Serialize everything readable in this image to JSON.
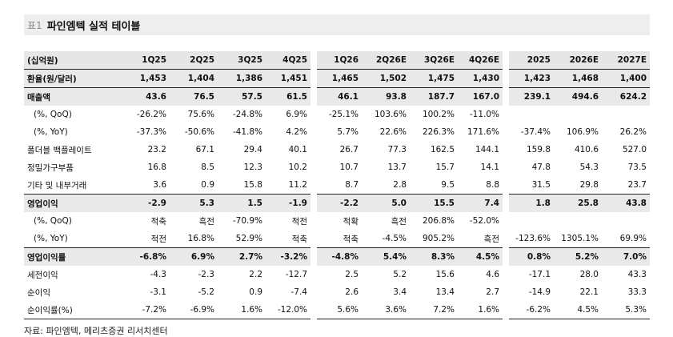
{
  "title": {
    "tag": "표1",
    "text": "파인엠텍 실적 테이블"
  },
  "columns": [
    "(십억원)",
    "1Q25",
    "2Q25",
    "3Q25",
    "4Q25",
    "1Q26",
    "2Q26E",
    "3Q26E",
    "4Q26E",
    "2025",
    "2026E",
    "2027E"
  ],
  "rows": [
    {
      "label": "환율(원/달러)",
      "style": "bold",
      "values": [
        "1,453",
        "1,404",
        "1,386",
        "1,451",
        "1,465",
        "1,502",
        "1,475",
        "1,430",
        "1,423",
        "1,468",
        "1,400"
      ]
    },
    {
      "label": "매출액",
      "style": "bold",
      "values": [
        "43.6",
        "76.5",
        "57.5",
        "61.5",
        "46.1",
        "93.8",
        "187.7",
        "167.0",
        "239.1",
        "494.6",
        "624.2"
      ]
    },
    {
      "label": "(%, QoQ)",
      "style": "indent",
      "values": [
        "-26.2%",
        "75.6%",
        "-24.8%",
        "6.9%",
        "-25.1%",
        "103.6%",
        "100.2%",
        "-11.0%",
        "",
        "",
        ""
      ]
    },
    {
      "label": "(%, YoY)",
      "style": "indent",
      "values": [
        "-37.3%",
        "-50.6%",
        "-41.8%",
        "4.2%",
        "5.7%",
        "22.6%",
        "226.3%",
        "171.6%",
        "-37.4%",
        "106.9%",
        "26.2%"
      ]
    },
    {
      "label": "폴더블 백플레이트",
      "style": "normal",
      "values": [
        "23.2",
        "67.1",
        "29.4",
        "40.1",
        "26.7",
        "77.3",
        "162.5",
        "144.1",
        "159.8",
        "410.6",
        "527.0"
      ]
    },
    {
      "label": "정밀가구부품",
      "style": "normal",
      "values": [
        "16.8",
        "8.5",
        "12.3",
        "10.2",
        "10.7",
        "13.7",
        "15.7",
        "14.1",
        "47.8",
        "54.3",
        "73.5"
      ]
    },
    {
      "label": "기타 및 내부거래",
      "style": "normal",
      "values": [
        "3.6",
        "0.9",
        "15.8",
        "11.2",
        "8.7",
        "2.8",
        "9.5",
        "8.8",
        "31.5",
        "29.8",
        "23.7"
      ]
    },
    {
      "label": "영업이익",
      "style": "bold",
      "values": [
        "-2.9",
        "5.3",
        "1.5",
        "-1.9",
        "-2.2",
        "5.0",
        "15.5",
        "7.4",
        "1.8",
        "25.8",
        "43.8"
      ]
    },
    {
      "label": "(%, QoQ)",
      "style": "indent",
      "values": [
        "적축",
        "흑전",
        "-70.9%",
        "적전",
        "적확",
        "흑전",
        "206.8%",
        "-52.0%",
        "",
        "",
        ""
      ]
    },
    {
      "label": "(%, YoY)",
      "style": "indent",
      "values": [
        "적전",
        "16.8%",
        "52.9%",
        "적축",
        "적축",
        "-4.5%",
        "905.2%",
        "흑전",
        "-123.6%",
        "1305.1%",
        "69.9%"
      ]
    },
    {
      "label": "영업이익률",
      "style": "bold",
      "values": [
        "-6.8%",
        "6.9%",
        "2.7%",
        "-3.2%",
        "-4.8%",
        "5.4%",
        "8.3%",
        "4.5%",
        "0.8%",
        "5.2%",
        "7.0%"
      ]
    },
    {
      "label": "세전이익",
      "style": "normal",
      "values": [
        "-4.3",
        "-2.3",
        "2.2",
        "-12.7",
        "2.5",
        "5.2",
        "15.6",
        "4.6",
        "-17.1",
        "28.0",
        "43.3"
      ]
    },
    {
      "label": "순이익",
      "style": "normal",
      "values": [
        "-3.1",
        "-5.2",
        "0.9",
        "-7.4",
        "2.6",
        "3.4",
        "13.4",
        "2.7",
        "-14.9",
        "22.1",
        "33.3"
      ]
    },
    {
      "label": "순이익률(%)",
      "style": "normal",
      "values": [
        "-7.2%",
        "-6.9%",
        "1.6%",
        "-12.0%",
        "5.6%",
        "3.6%",
        "7.2%",
        "1.6%",
        "-6.2%",
        "4.5%",
        "5.3%"
      ]
    }
  ],
  "source": "자료: 파인엠텍, 메리츠증권 리서치센터"
}
